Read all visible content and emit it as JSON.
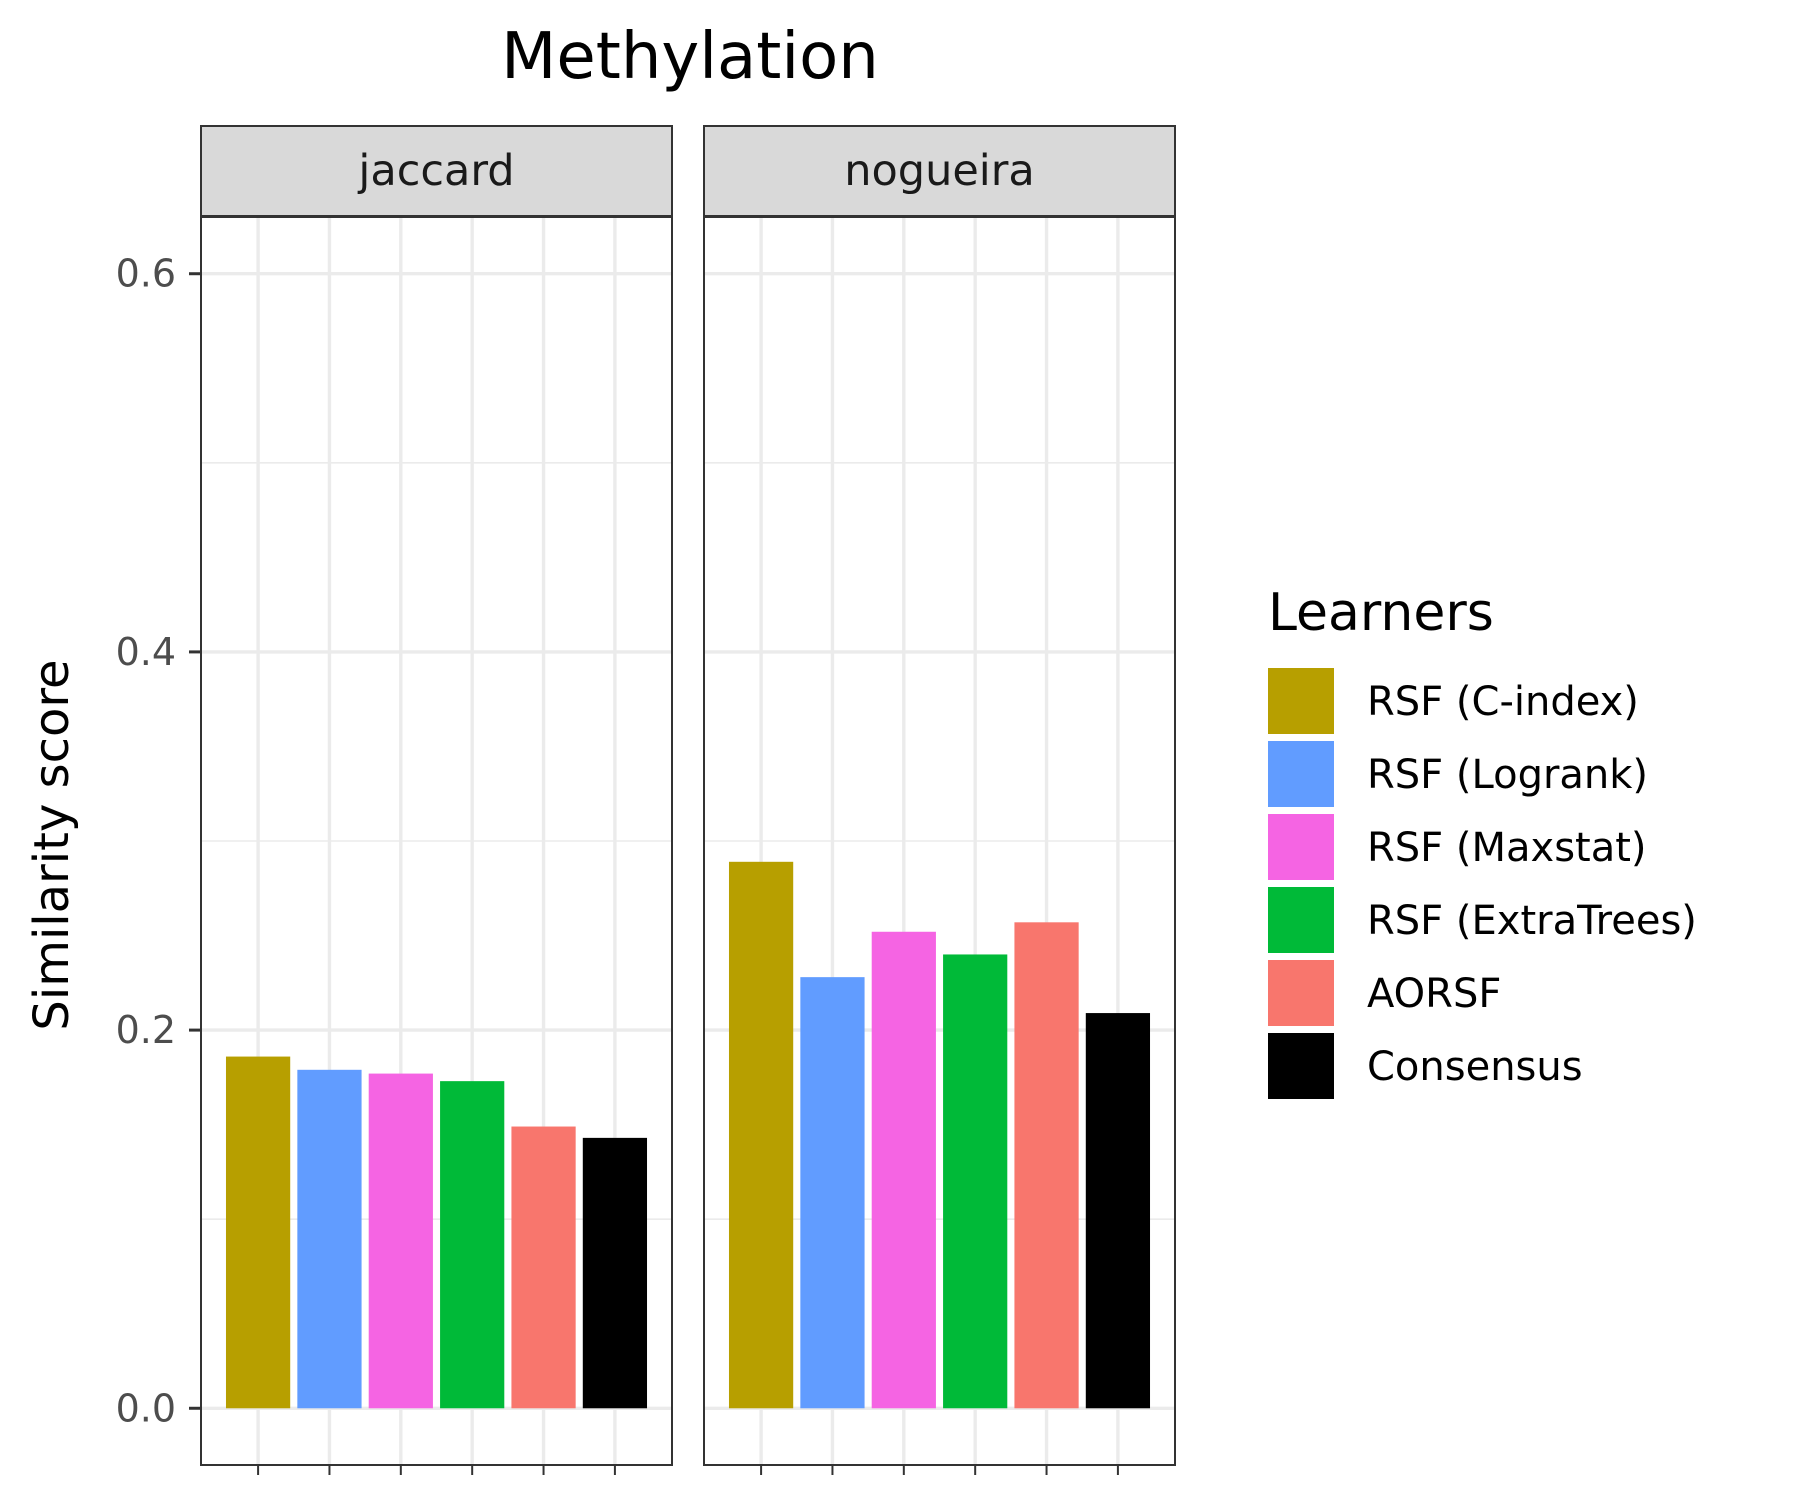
{
  "chart_data": {
    "type": "bar",
    "title": "Methylation",
    "ylabel": "Similarity score",
    "xlabel": "",
    "ylim": [
      -0.03,
      0.63
    ],
    "yticks": [
      0.0,
      0.2,
      0.4,
      0.6
    ],
    "ytick_labels": [
      "0.0",
      "0.2",
      "0.4",
      "0.6"
    ],
    "grid": true,
    "legend": {
      "title": "Learners",
      "position": "right"
    },
    "categories": [
      "RSF (C-index)",
      "RSF (Logrank)",
      "RSF (Maxstat)",
      "RSF (ExtraTrees)",
      "AORSF",
      "Consensus"
    ],
    "colors": [
      "#B79F00",
      "#619CFF",
      "#F564E3",
      "#00BA38",
      "#F8766D",
      "#000000"
    ],
    "facets": [
      {
        "name": "jaccard",
        "values": [
          0.186,
          0.179,
          0.177,
          0.173,
          0.149,
          0.143
        ]
      },
      {
        "name": "nogueira",
        "values": [
          0.289,
          0.228,
          0.252,
          0.24,
          0.257,
          0.209
        ]
      }
    ]
  }
}
